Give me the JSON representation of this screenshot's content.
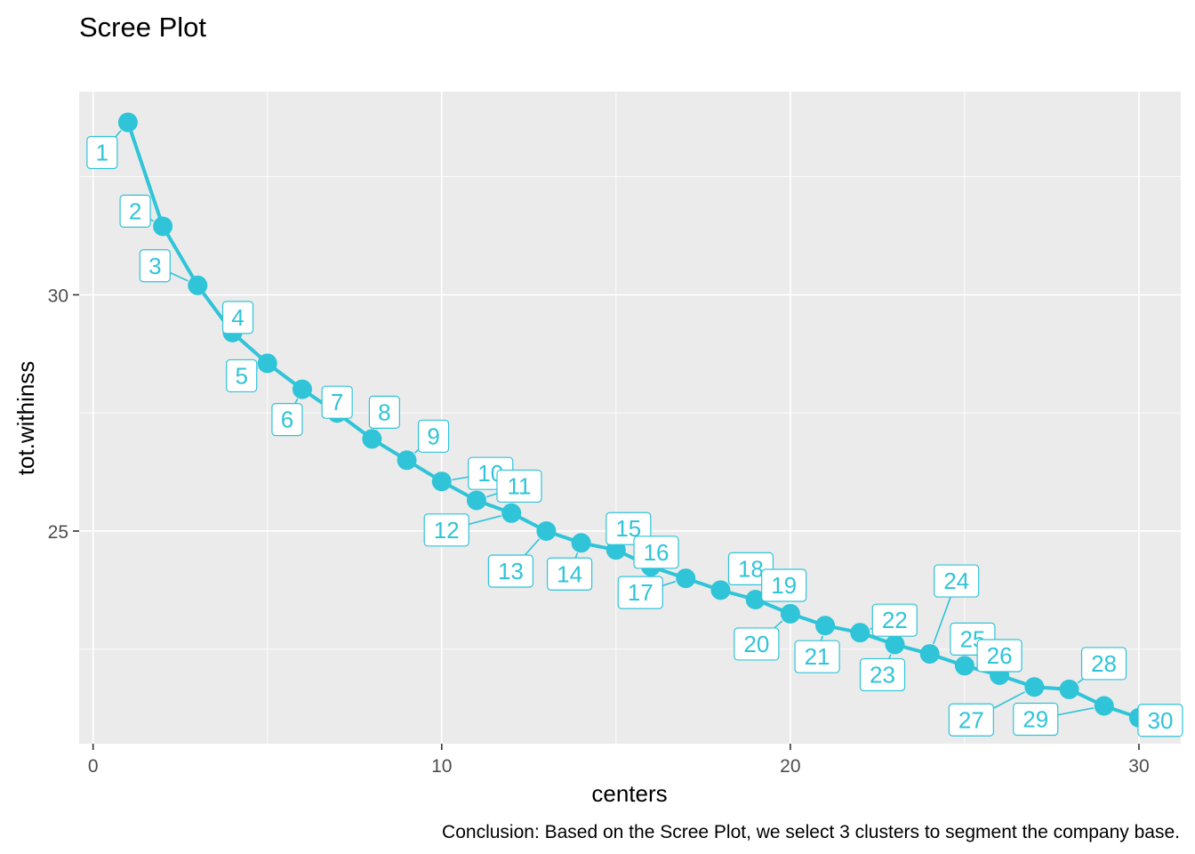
{
  "chart_data": {
    "type": "line",
    "title": "Scree Plot",
    "xlabel": "centers",
    "ylabel": "tot.withinss",
    "caption": "Conclusion: Based on the Scree Plot, we select 3 clusters to segment the company base.",
    "xlim": [
      -0.4,
      31.2
    ],
    "ylim": [
      20.5,
      34.3
    ],
    "x_ticks": [
      0,
      10,
      20,
      30
    ],
    "y_ticks": [
      25,
      30
    ],
    "grid": true,
    "legend": "none",
    "color": "#2fc4d8",
    "panel_color": "#ebebeb",
    "point_labels": [
      "1",
      "2",
      "3",
      "4",
      "5",
      "6",
      "7",
      "8",
      "9",
      "10",
      "11",
      "12",
      "13",
      "14",
      "15",
      "16",
      "17",
      "18",
      "19",
      "20",
      "21",
      "22",
      "23",
      "24",
      "25",
      "26",
      "27",
      "28",
      "29",
      "30"
    ],
    "series": [
      {
        "x": [
          1,
          2,
          3,
          4,
          5,
          6,
          7,
          8,
          9,
          10,
          11,
          12,
          13,
          14,
          15,
          16,
          17,
          18,
          19,
          20,
          21,
          22,
          23,
          24,
          25,
          26,
          27,
          28,
          29,
          30
        ],
        "y": [
          33.65,
          31.45,
          30.2,
          29.2,
          28.55,
          28.0,
          27.5,
          26.95,
          26.5,
          26.05,
          25.65,
          25.38,
          25.0,
          24.75,
          24.6,
          24.25,
          24.0,
          23.75,
          23.55,
          23.25,
          23.0,
          22.85,
          22.6,
          22.4,
          22.15,
          21.95,
          21.7,
          21.65,
          21.3,
          21.05
        ]
      }
    ]
  }
}
